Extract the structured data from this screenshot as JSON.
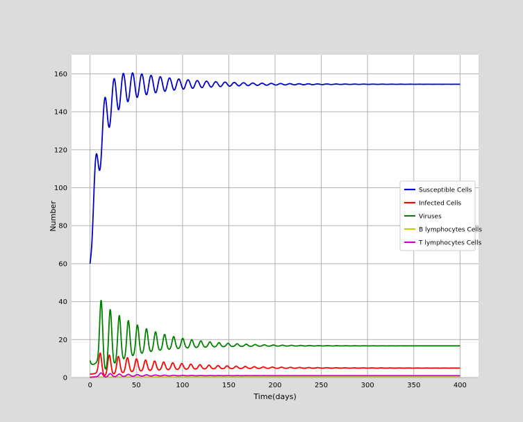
{
  "chart_data": {
    "type": "line",
    "title": "",
    "xlabel": "Time(days)",
    "ylabel": "Number",
    "xlim": [
      -20,
      420
    ],
    "ylim": [
      0,
      170
    ],
    "xticks": [
      0,
      50,
      100,
      150,
      200,
      250,
      300,
      350,
      400
    ],
    "yticks": [
      0,
      20,
      40,
      60,
      80,
      100,
      120,
      140,
      160
    ],
    "grid": true,
    "legend_position": "center-right",
    "colors": {
      "susceptible": "#0000cc",
      "infected": "#ff0000",
      "viruses": "#008000",
      "b_lymph": "#cccc00",
      "t_lymph": "#cc00cc",
      "grid": "#b0b0b0",
      "panel": "#ffffff",
      "background": "#dcdcdc"
    },
    "series": [
      {
        "name": "Susceptible Cells",
        "color_key": "susceptible",
        "model": {
          "kind": "damped",
          "t0": 0,
          "y0": 60,
          "equil": 154.5,
          "rise_tau": 10,
          "amp": 16,
          "period": 10,
          "decay": 55,
          "phase": 0.35,
          "t_end": 400
        }
      },
      {
        "name": "Infected Cells",
        "color_key": "infected",
        "model": {
          "kind": "spikes",
          "t0": 0,
          "y0": 2,
          "equil": 5,
          "base": 1.5,
          "first_peak": 15.5,
          "first_t": 11,
          "period": 9.8,
          "decay": 65,
          "width": 1.6,
          "t_end": 400
        }
      },
      {
        "name": "Viruses",
        "color_key": "viruses",
        "model": {
          "kind": "spikes",
          "t0": 0,
          "y0": 9,
          "equil": 16.7,
          "base": 5,
          "first_peak": 49,
          "first_t": 12,
          "period": 9.8,
          "decay": 45,
          "width": 1.6,
          "t_end": 400
        }
      },
      {
        "name": "B lymphocytes Cells",
        "color_key": "b_lymph",
        "model": {
          "kind": "flat",
          "y0": 0.3,
          "equil": 0.3,
          "t_end": 400
        }
      },
      {
        "name": "T lymphocytes Cells",
        "color_key": "t_lymph",
        "model": {
          "kind": "spikes",
          "t0": 0,
          "y0": 0,
          "equil": 1,
          "base": 0.3,
          "first_peak": 3,
          "first_t": 12,
          "period": 9.8,
          "decay": 40,
          "width": 1.8,
          "t_end": 400
        }
      }
    ]
  }
}
